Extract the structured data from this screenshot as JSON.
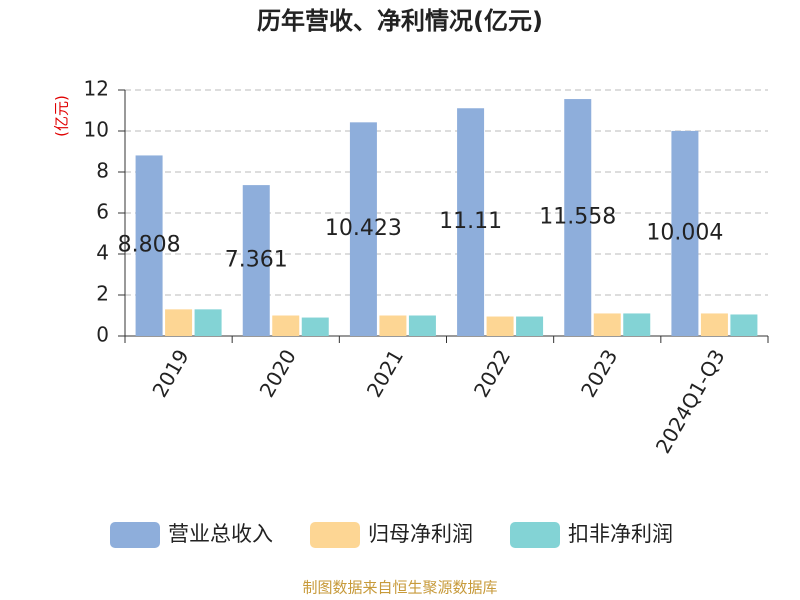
{
  "chart_data": {
    "type": "bar",
    "title": "历年营收、净利情况(亿元)",
    "y_label": "(亿元)",
    "categories": [
      "2019",
      "2020",
      "2021",
      "2022",
      "2023",
      "2024Q1-Q3"
    ],
    "series": [
      {
        "name": "营业总收入",
        "color": "#8eaedb",
        "values": [
          8.808,
          7.361,
          10.423,
          11.11,
          11.558,
          10.004
        ],
        "show_labels": true
      },
      {
        "name": "归母净利润",
        "color": "#fdd694",
        "values": [
          1.3,
          1.0,
          1.0,
          0.95,
          1.1,
          1.1
        ]
      },
      {
        "name": "扣非净利润",
        "color": "#83d3d5",
        "values": [
          1.3,
          0.9,
          1.0,
          0.95,
          1.1,
          1.05
        ]
      }
    ],
    "ylim": [
      0,
      12
    ],
    "yticks": [
      0,
      2,
      4,
      6,
      8,
      10,
      12
    ],
    "grid": true,
    "legend": "bottom",
    "source": "制图数据来自恒生聚源数据库"
  }
}
